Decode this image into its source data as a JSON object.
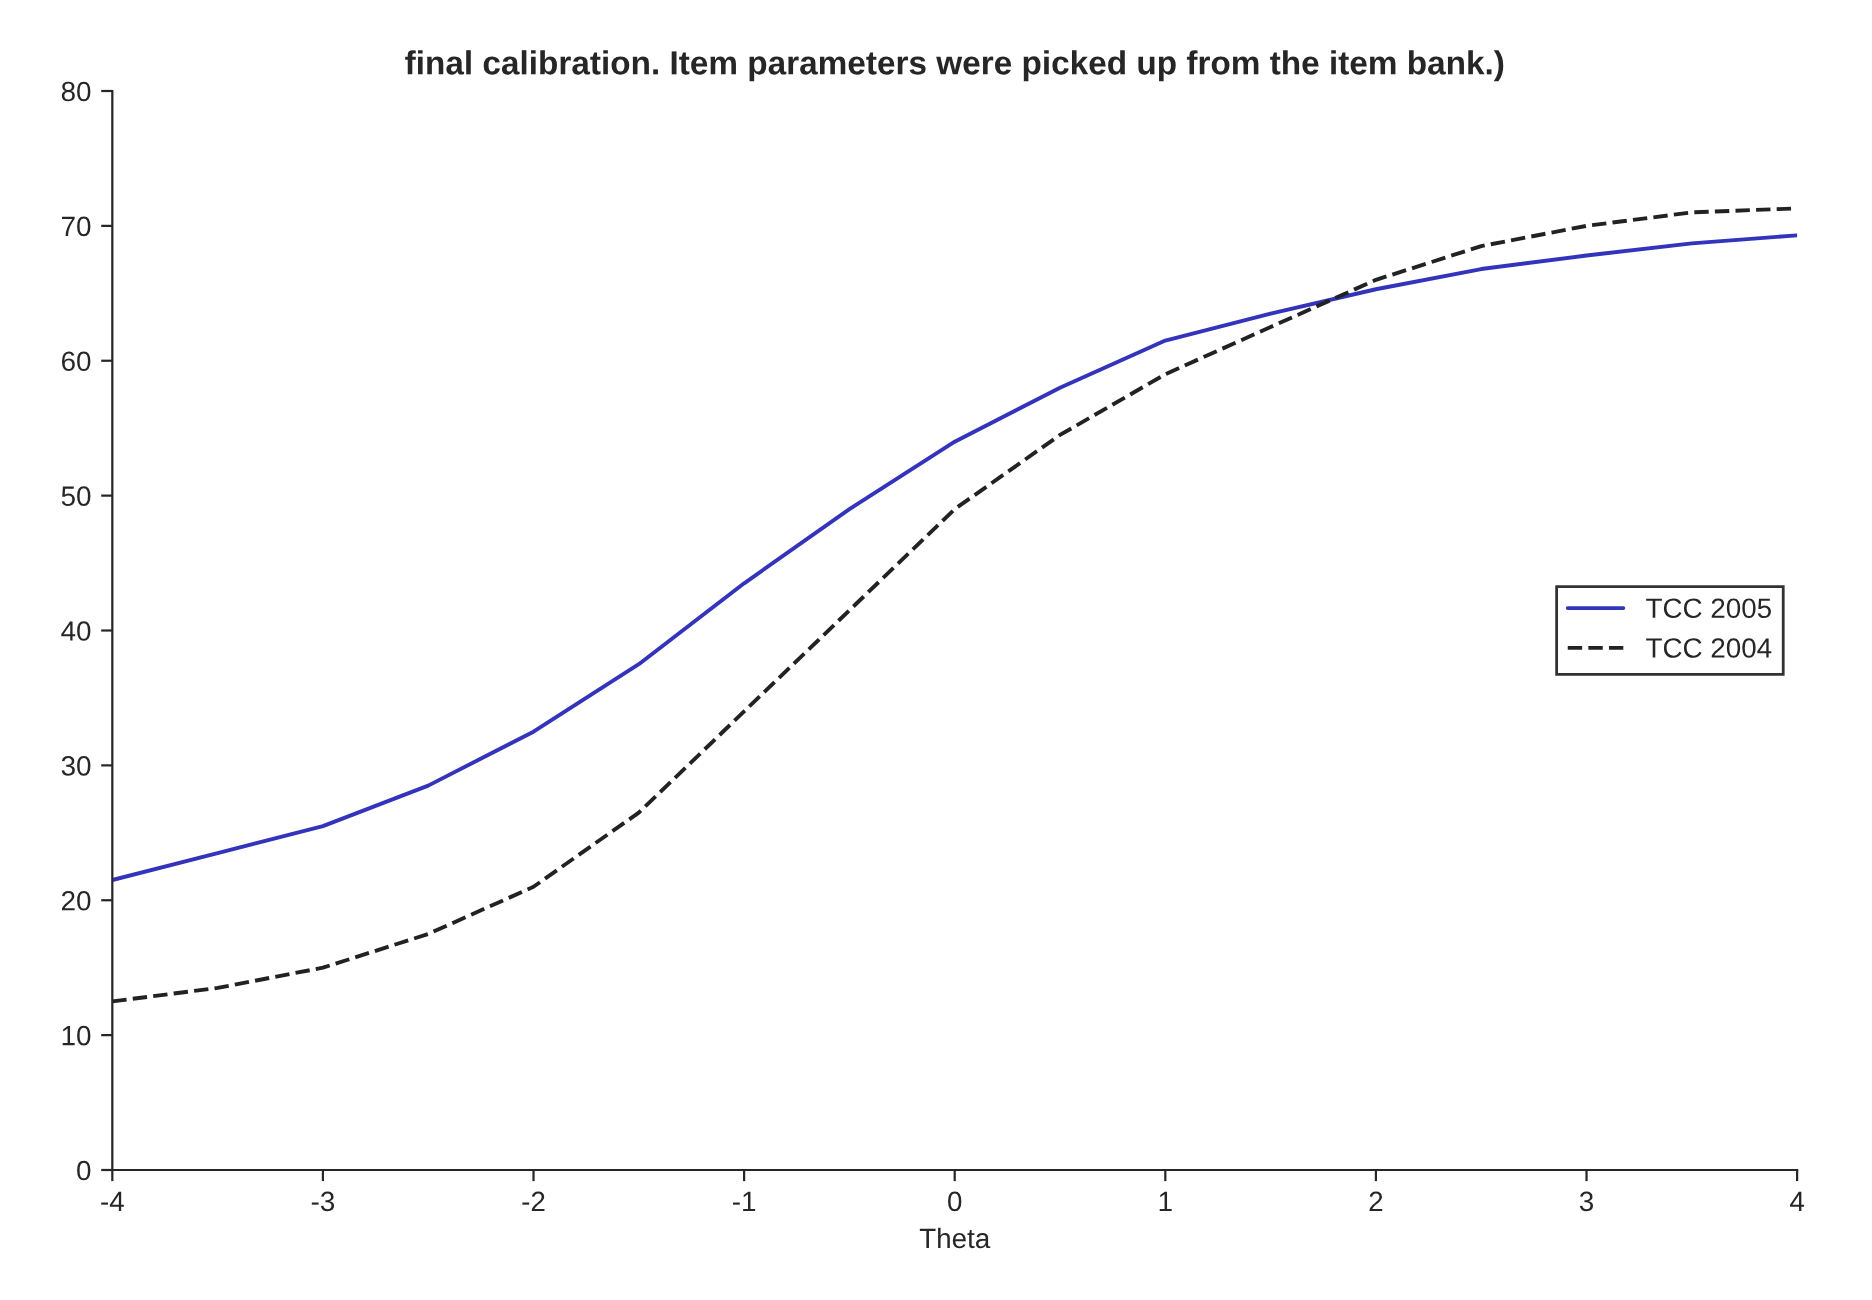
{
  "chart_data": {
    "type": "line",
    "title": "final calibration. Item parameters were picked up from the item bank.)",
    "xlabel": "Theta",
    "x": [
      -4,
      -3.5,
      -3,
      -2.5,
      -2,
      -1.5,
      -1,
      -0.5,
      0,
      0.5,
      1,
      1.5,
      2,
      2.5,
      3,
      3.5,
      4
    ],
    "series": [
      {
        "name": "TCC 2005",
        "color": "#3333bb",
        "line_style": "solid",
        "values": [
          21.5,
          23.5,
          25.5,
          28.5,
          32.5,
          37.5,
          43.5,
          49,
          54,
          58,
          61.5,
          63.5,
          65.3,
          66.8,
          67.8,
          68.7,
          69.3
        ]
      },
      {
        "name": "TCC 2004",
        "color": "#222222",
        "line_style": "dashed",
        "values": [
          12.5,
          13.5,
          15,
          17.5,
          21,
          26.5,
          34,
          41.5,
          49,
          54.5,
          59,
          62.5,
          66,
          68.5,
          70,
          71,
          71.3
        ]
      }
    ],
    "xlim": [
      -4,
      4
    ],
    "xticks": [
      -4,
      -3,
      -2,
      -1,
      0,
      1,
      2,
      3,
      4
    ],
    "ylim": [
      0,
      80
    ],
    "yticks": [
      0,
      10,
      20,
      30,
      40,
      50,
      60,
      70,
      80
    ],
    "grid": false,
    "legend": "right",
    "marker": "none"
  }
}
